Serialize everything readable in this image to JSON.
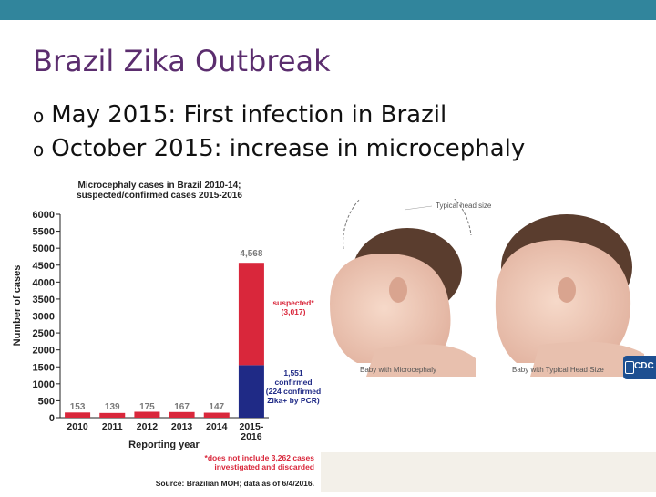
{
  "slide": {
    "title": "Brazil Zika Outbreak",
    "bullets": [
      "May 2015: First infection in Brazil",
      "October 2015: increase in microcephaly"
    ],
    "bullet_mark": "o"
  },
  "chart_data": {
    "type": "bar",
    "title_lines": [
      "Microcephaly cases in Brazil 2010-14;",
      "suspected/confirmed cases 2015-2016"
    ],
    "xlabel": "Reporting year",
    "ylabel": "Number of cases",
    "ylim": [
      0,
      6000
    ],
    "yticks": [
      "0",
      "500",
      "1000",
      "1500",
      "2000",
      "2500",
      "3000",
      "3500",
      "4000",
      "4500",
      "5000",
      "5500",
      "6000"
    ],
    "categories": [
      "2010",
      "2011",
      "2012",
      "2013",
      "2014",
      "2015-2016"
    ],
    "series": [
      {
        "values": [
          0,
          0,
          0,
          0,
          0,
          1551
        ],
        "color": "#1f2a86"
      },
      {
        "values": [
          153,
          139,
          175,
          167,
          147,
          3017
        ],
        "color": "#d9273b"
      }
    ],
    "data_labels": [
      "153",
      "139",
      "175",
      "167",
      "147",
      "4,568"
    ],
    "annotations": {
      "suspected": [
        "suspected*",
        "(3,017)"
      ],
      "confirmed": [
        "1,551",
        "confirmed",
        "(224 confirmed",
        "Zika+ by PCR)"
      ],
      "footnote": [
        "*does not include 3,262 cases",
        "investigated and discarded"
      ],
      "source": "Source: Brazilian MOH; data as of 6/4/2016."
    },
    "grid": false
  },
  "illustration": {
    "typical_head_label": "Typical head size",
    "caption_left": "Baby with Microcephaly",
    "caption_right": "Baby with Typical Head Size",
    "logo_text": "CDC"
  }
}
